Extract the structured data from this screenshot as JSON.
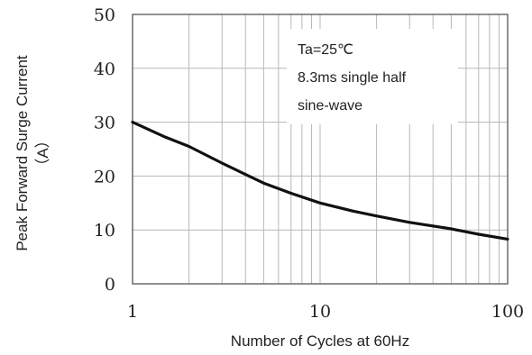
{
  "chart_data": {
    "type": "line",
    "xlabel": "Number of Cycles at 60Hz",
    "ylabel": "Peak Forward Surge Current",
    "ylabel_unit": "（A）",
    "x_scale": "log",
    "xlim": [
      1,
      100
    ],
    "ylim": [
      0,
      50
    ],
    "grid": true,
    "x_ticks": [
      1,
      10,
      100
    ],
    "x_tick_labels": [
      "1",
      "10",
      "100"
    ],
    "y_ticks": [
      0,
      10,
      20,
      30,
      40,
      50
    ],
    "y_tick_labels": [
      "0",
      "10",
      "20",
      "30",
      "40",
      "50"
    ],
    "annotations": [
      "Ta=25℃",
      "8.3ms single half",
      "sine-wave"
    ],
    "series": [
      {
        "x": [
          1,
          1.5,
          2,
          3,
          4,
          5,
          7,
          10,
          15,
          20,
          30,
          50,
          70,
          100
        ],
        "y": [
          30,
          27.2,
          25.5,
          22.4,
          20.3,
          18.7,
          16.8,
          15,
          13.5,
          12.6,
          11.4,
          10.2,
          9.2,
          8.3
        ]
      }
    ]
  }
}
